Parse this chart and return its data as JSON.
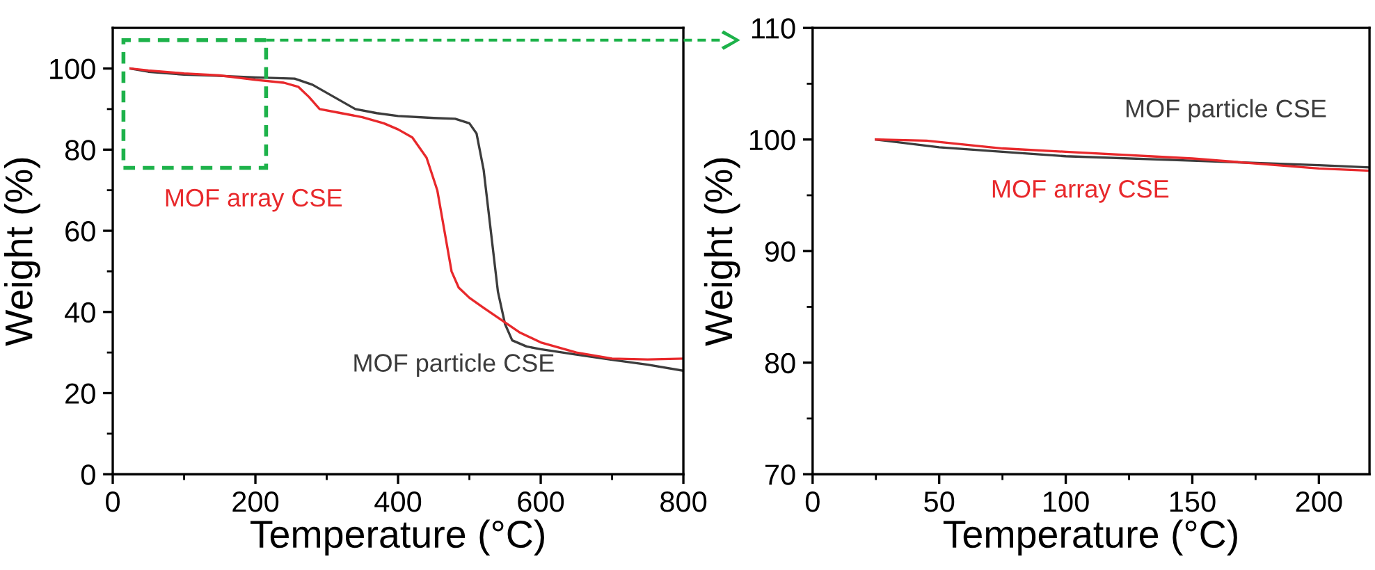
{
  "chart_data": [
    {
      "type": "line",
      "xlabel": "Temperature (°C)",
      "ylabel": "Weight (%)",
      "xlim": [
        0,
        800
      ],
      "ylim": [
        0,
        110
      ],
      "xticks": [
        0,
        200,
        400,
        600,
        800
      ],
      "yticks": [
        0,
        20,
        40,
        60,
        80,
        100
      ],
      "grid": false,
      "legend": false,
      "line_style": "solid",
      "marker": "none",
      "series": [
        {
          "name": "MOF particle CSE",
          "color": "#3c3c3c",
          "x": [
            25,
            50,
            100,
            150,
            200,
            255,
            280,
            310,
            340,
            370,
            400,
            450,
            480,
            500,
            510,
            520,
            530,
            540,
            550,
            560,
            580,
            600,
            650,
            700,
            750,
            800
          ],
          "values": [
            100,
            99.2,
            98.5,
            98.2,
            97.8,
            97.5,
            96,
            93,
            90,
            89,
            88.3,
            87.8,
            87.6,
            86.5,
            84,
            75,
            60,
            45,
            37,
            33,
            31.5,
            30.8,
            29.5,
            28.2,
            27,
            25.5
          ]
        },
        {
          "name": "MOF array CSE",
          "color": "#e8282b",
          "x": [
            25,
            50,
            100,
            150,
            200,
            240,
            260,
            275,
            290,
            320,
            350,
            380,
            400,
            420,
            440,
            455,
            465,
            475,
            485,
            500,
            520,
            545,
            570,
            600,
            650,
            700,
            750,
            800
          ],
          "values": [
            100,
            99.5,
            98.8,
            98.3,
            97.2,
            96.5,
            95.5,
            93,
            90,
            89,
            88,
            86.5,
            85,
            83,
            78,
            70,
            60,
            50,
            46,
            43.5,
            41,
            38,
            35,
            32.5,
            30,
            28.5,
            28.3,
            28.5
          ]
        }
      ]
    },
    {
      "type": "line",
      "xlabel": "Temperature (°C)",
      "ylabel": "Weight (%)",
      "xlim": [
        0,
        220
      ],
      "ylim": [
        70,
        110
      ],
      "xticks": [
        0,
        50,
        100,
        150,
        200
      ],
      "yticks": [
        70,
        80,
        90,
        100,
        110
      ],
      "grid": false,
      "legend": false,
      "line_style": "solid",
      "marker": "none",
      "series": [
        {
          "name": "MOF particle CSE",
          "color": "#3c3c3c",
          "x": [
            25,
            50,
            75,
            100,
            150,
            200,
            220
          ],
          "values": [
            100,
            99.3,
            98.9,
            98.5,
            98.1,
            97.7,
            97.5
          ]
        },
        {
          "name": "MOF array CSE",
          "color": "#e8282b",
          "x": [
            25,
            45,
            75,
            100,
            150,
            200,
            220
          ],
          "values": [
            100,
            99.9,
            99.2,
            98.9,
            98.3,
            97.4,
            97.2
          ]
        }
      ]
    }
  ]
}
